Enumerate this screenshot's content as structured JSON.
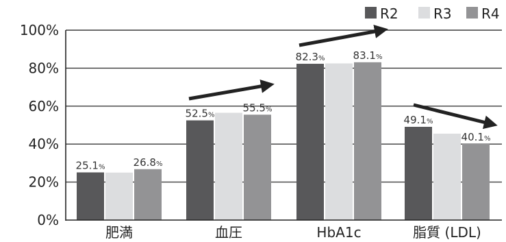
{
  "chart_data": {
    "type": "bar",
    "categories": [
      "肥満",
      "血圧",
      "HbA1c",
      "脂質 (LDL)"
    ],
    "series": [
      {
        "name": "R2",
        "color": "#58585a",
        "values": [
          25.1,
          52.5,
          82.3,
          49.1
        ]
      },
      {
        "name": "R3",
        "color": "#dcdddf",
        "values": [
          25.0,
          56.5,
          82.5,
          45.5
        ]
      },
      {
        "name": "R4",
        "color": "#939395",
        "values": [
          26.8,
          55.5,
          83.1,
          40.1
        ]
      }
    ],
    "data_labels": [
      {
        "category": 0,
        "series": 0,
        "number": "25.1",
        "unit": "%"
      },
      {
        "category": 0,
        "series": 2,
        "number": "26.8",
        "unit": "%"
      },
      {
        "category": 1,
        "series": 0,
        "number": "52.5",
        "unit": "%"
      },
      {
        "category": 1,
        "series": 2,
        "number": "55.5",
        "unit": "%"
      },
      {
        "category": 2,
        "series": 0,
        "number": "82.3",
        "unit": "%"
      },
      {
        "category": 2,
        "series": 2,
        "number": "83.1",
        "unit": "%"
      },
      {
        "category": 3,
        "series": 0,
        "number": "49.1",
        "unit": "%"
      },
      {
        "category": 3,
        "series": 2,
        "number": "40.1",
        "unit": "%"
      }
    ],
    "yticks": [
      "0%",
      "20%",
      "40%",
      "60%",
      "80%",
      "100%"
    ],
    "ylim": [
      0,
      100
    ],
    "grid": true,
    "legend_position": "top-right",
    "trend_arrows": [
      "up",
      "up",
      "down"
    ]
  }
}
